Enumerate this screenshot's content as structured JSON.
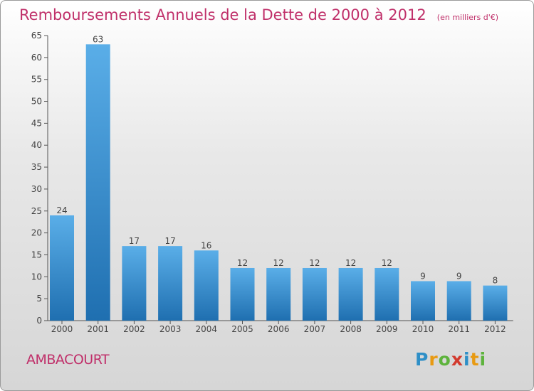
{
  "header": {
    "title": "Remboursements Annuels de la Dette de 2000 à 2012",
    "unit": "(en milliers d'€)"
  },
  "footer": {
    "commune": "AMBACOURT",
    "brand": "Proxiti",
    "brand_letters": [
      "P",
      "r",
      "o",
      "x",
      "i",
      "t",
      "i"
    ]
  },
  "chart_data": {
    "type": "bar",
    "title": "Remboursements Annuels de la Dette de 2000 à 2012",
    "subtitle": "(en milliers d'€)",
    "categories": [
      "2000",
      "2001",
      "2002",
      "2003",
      "2004",
      "2005",
      "2006",
      "2007",
      "2008",
      "2009",
      "2010",
      "2011",
      "2012"
    ],
    "values": [
      24,
      63,
      17,
      17,
      16,
      12,
      12,
      12,
      12,
      12,
      9,
      9,
      8
    ],
    "ylim": [
      0,
      65
    ],
    "yticks": [
      0,
      5,
      10,
      15,
      20,
      25,
      30,
      35,
      40,
      45,
      50,
      55,
      60,
      65
    ],
    "grid": false,
    "data_labels": true,
    "colors": {
      "bar_light": "#5aaee8",
      "bar_dark": "#1f6fb0",
      "axis": "#555555",
      "title": "#c0306a"
    }
  }
}
